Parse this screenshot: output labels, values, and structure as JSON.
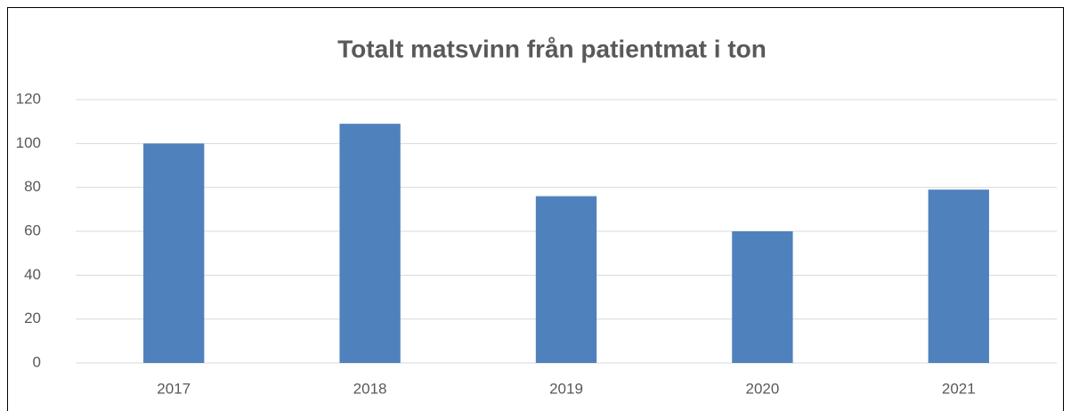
{
  "chart_data": {
    "type": "bar",
    "title": "Totalt matsvinn från patientmat i ton",
    "categories": [
      "2017",
      "2018",
      "2019",
      "2020",
      "2021"
    ],
    "values": [
      100,
      109,
      76,
      60,
      79
    ],
    "color": "#4f81bd",
    "ylim": [
      0,
      120
    ],
    "yticks": [
      0,
      20,
      40,
      60,
      80,
      100,
      120
    ],
    "grid": true
  }
}
